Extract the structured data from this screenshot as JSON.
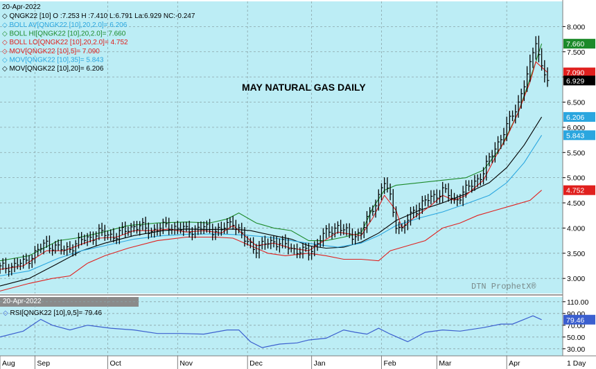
{
  "colors": {
    "plot_bg": "#bcedf5",
    "bar": "#000000",
    "boll": "#1c8a2a",
    "mov5": "#e0201e",
    "mov35": "#2aa6df",
    "mov20": "#000000",
    "rsi": "#3b5fcf",
    "axis_bg": "#ffffff",
    "panel_border": "#7d7d7d"
  },
  "header": {
    "date": "20-Apr-2022",
    "quote": "QNGK22 [10] O :7.253 H :7.410 L:6.791 La:6.929 NC:-0.247"
  },
  "legend": [
    {
      "text": "BOLL AV[QNGK22 [10],20,2.0]= 6.206",
      "color": "#2aa6df"
    },
    {
      "text": "BOLL HI[QNGK22 [10],20,2.0]= 7.660",
      "color": "#1c8a2a"
    },
    {
      "text": "BOLL LO[QNGK22 [10],20,2.0]= 4.752",
      "color": "#e0201e"
    },
    {
      "text": "MOV[QNGK22 [10],5]= 7.090",
      "color": "#e0201e"
    },
    {
      "text": "MOV[QNGK22 [10],35]= 5.843",
      "color": "#2aa6df"
    },
    {
      "text": "MOV[QNGK22 [10],20]= 6.206",
      "color": "#000000"
    }
  ],
  "title": "MAY NATURAL GAS DAILY",
  "watermark": "DTN ProphetX®",
  "rsi_header": {
    "date": "20-Apr-2022",
    "label": "RSI[QNGK22 [10],9,5]= 79.46"
  },
  "period": "1 Day",
  "price_badges": [
    {
      "value": 7.66,
      "text": "7.660",
      "bg": "#1c8a2a",
      "fg": "#ffffff"
    },
    {
      "value": 7.09,
      "text": "7.090",
      "bg": "#e0201e",
      "fg": "#ffffff"
    },
    {
      "value": 6.929,
      "text": "6.929",
      "bg": "#000000",
      "fg": "#ffffff"
    },
    {
      "value": 6.206,
      "text": "6.206",
      "bg": "#2aa6df",
      "fg": "#ffffff"
    },
    {
      "value": 5.843,
      "text": "5.843",
      "bg": "#2aa6df",
      "fg": "#ffffff"
    },
    {
      "value": 4.752,
      "text": "4.752",
      "bg": "#e0201e",
      "fg": "#ffffff"
    }
  ],
  "rsi_badge": {
    "value": 79.46,
    "text": "79.46",
    "bg": "#3b5fcf",
    "fg": "#ffffff"
  },
  "chart_data": {
    "type": "line",
    "title": "MAY NATURAL GAS DAILY",
    "price_axis": {
      "ylim": [
        2.7,
        8.5
      ],
      "ticks": [
        "8.000",
        "7.500",
        "7.000",
        "6.500",
        "6.000",
        "5.500",
        "5.000",
        "4.500",
        "4.000",
        "3.500",
        "3.000"
      ],
      "tick_values": [
        8.0,
        7.5,
        7.0,
        6.5,
        6.0,
        5.5,
        5.0,
        4.5,
        4.0,
        3.5,
        3.0
      ]
    },
    "rsi_axis": {
      "ylim": [
        18,
        118
      ],
      "ticks": [
        "110.00",
        "90.00",
        "70.00",
        "50.00",
        "30.00"
      ],
      "tick_values": [
        110,
        90,
        70,
        50,
        30
      ]
    },
    "months": [
      "Aug",
      "Sep",
      "Oct",
      "Nov",
      "Dec",
      "Jan",
      "Feb",
      "Mar",
      "Apr"
    ],
    "x_range": [
      0,
      188
    ],
    "month_starts": [
      0,
      12,
      37,
      61,
      85,
      107,
      131,
      150,
      174
    ],
    "grid": true,
    "close": [
      [
        0,
        3.2
      ],
      [
        8,
        3.3
      ],
      [
        16,
        3.7
      ],
      [
        22,
        3.55
      ],
      [
        28,
        3.75
      ],
      [
        34,
        3.9
      ],
      [
        40,
        3.85
      ],
      [
        46,
        4.05
      ],
      [
        52,
        3.95
      ],
      [
        58,
        4.05
      ],
      [
        64,
        3.95
      ],
      [
        70,
        4.0
      ],
      [
        76,
        3.95
      ],
      [
        80,
        4.15
      ],
      [
        84,
        3.75
      ],
      [
        88,
        3.6
      ],
      [
        94,
        3.75
      ],
      [
        100,
        3.6
      ],
      [
        106,
        3.5
      ],
      [
        110,
        3.8
      ],
      [
        116,
        4.05
      ],
      [
        120,
        3.85
      ],
      [
        124,
        3.9
      ],
      [
        128,
        4.4
      ],
      [
        132,
        4.9
      ],
      [
        134,
        4.6
      ],
      [
        136,
        4.1
      ],
      [
        138,
        3.95
      ],
      [
        142,
        4.35
      ],
      [
        148,
        4.6
      ],
      [
        152,
        4.75
      ],
      [
        156,
        4.55
      ],
      [
        160,
        4.75
      ],
      [
        166,
        5.1
      ],
      [
        170,
        5.6
      ],
      [
        174,
        6.0
      ],
      [
        178,
        6.5
      ],
      [
        182,
        7.2
      ],
      [
        184,
        7.75
      ],
      [
        186,
        7.2
      ],
      [
        188,
        6.93
      ]
    ],
    "series": [
      {
        "name": "BOLL HI[QNGK22 [10],20,2.0]",
        "color": "#1c8a2a",
        "points": [
          [
            0,
            3.35
          ],
          [
            10,
            3.45
          ],
          [
            20,
            3.75
          ],
          [
            26,
            3.8
          ],
          [
            34,
            3.9
          ],
          [
            44,
            4.05
          ],
          [
            54,
            4.1
          ],
          [
            64,
            4.12
          ],
          [
            72,
            4.1
          ],
          [
            78,
            4.18
          ],
          [
            82,
            4.3
          ],
          [
            88,
            4.1
          ],
          [
            94,
            4.0
          ],
          [
            100,
            3.95
          ],
          [
            106,
            3.75
          ],
          [
            112,
            3.75
          ],
          [
            118,
            3.82
          ],
          [
            124,
            3.9
          ],
          [
            128,
            4.4
          ],
          [
            132,
            4.75
          ],
          [
            136,
            4.85
          ],
          [
            144,
            4.9
          ],
          [
            152,
            4.95
          ],
          [
            160,
            5.0
          ],
          [
            166,
            5.15
          ],
          [
            172,
            5.6
          ],
          [
            178,
            6.3
          ],
          [
            184,
            7.3
          ],
          [
            186,
            7.66
          ]
        ]
      },
      {
        "name": "BOLL AV[QNGK22 [10],20,2.0]",
        "color": "#000000",
        "points": [
          [
            0,
            2.85
          ],
          [
            10,
            3.0
          ],
          [
            20,
            3.3
          ],
          [
            28,
            3.55
          ],
          [
            36,
            3.7
          ],
          [
            46,
            3.85
          ],
          [
            56,
            3.95
          ],
          [
            64,
            3.98
          ],
          [
            72,
            3.97
          ],
          [
            80,
            3.98
          ],
          [
            86,
            3.95
          ],
          [
            94,
            3.85
          ],
          [
            100,
            3.78
          ],
          [
            106,
            3.65
          ],
          [
            112,
            3.6
          ],
          [
            118,
            3.62
          ],
          [
            124,
            3.72
          ],
          [
            130,
            3.9
          ],
          [
            136,
            4.15
          ],
          [
            144,
            4.35
          ],
          [
            152,
            4.5
          ],
          [
            160,
            4.68
          ],
          [
            168,
            4.9
          ],
          [
            174,
            5.2
          ],
          [
            180,
            5.65
          ],
          [
            186,
            6.206
          ]
        ]
      },
      {
        "name": "BOLL LO[QNGK22 [10],20,2.0]",
        "color": "#e0201e",
        "points": [
          [
            0,
            2.75
          ],
          [
            10,
            2.9
          ],
          [
            18,
            3.0
          ],
          [
            24,
            3.05
          ],
          [
            30,
            3.3
          ],
          [
            36,
            3.45
          ],
          [
            44,
            3.6
          ],
          [
            54,
            3.75
          ],
          [
            64,
            3.82
          ],
          [
            74,
            3.82
          ],
          [
            80,
            3.8
          ],
          [
            86,
            3.65
          ],
          [
            92,
            3.5
          ],
          [
            98,
            3.45
          ],
          [
            106,
            3.5
          ],
          [
            112,
            3.45
          ],
          [
            118,
            3.38
          ],
          [
            124,
            3.38
          ],
          [
            130,
            3.35
          ],
          [
            134,
            3.55
          ],
          [
            140,
            3.65
          ],
          [
            146,
            3.75
          ],
          [
            152,
            4.0
          ],
          [
            158,
            4.1
          ],
          [
            164,
            4.25
          ],
          [
            170,
            4.35
          ],
          [
            176,
            4.45
          ],
          [
            182,
            4.55
          ],
          [
            186,
            4.752
          ]
        ]
      },
      {
        "name": "MOV[QNGK22 [10],5]",
        "color": "#e0201e",
        "points": [
          [
            0,
            3.18
          ],
          [
            8,
            3.25
          ],
          [
            16,
            3.55
          ],
          [
            22,
            3.55
          ],
          [
            28,
            3.68
          ],
          [
            34,
            3.8
          ],
          [
            40,
            3.82
          ],
          [
            46,
            3.95
          ],
          [
            52,
            3.95
          ],
          [
            58,
            3.98
          ],
          [
            64,
            3.92
          ],
          [
            70,
            3.95
          ],
          [
            76,
            3.9
          ],
          [
            80,
            4.05
          ],
          [
            84,
            3.85
          ],
          [
            88,
            3.65
          ],
          [
            94,
            3.7
          ],
          [
            100,
            3.6
          ],
          [
            106,
            3.55
          ],
          [
            110,
            3.7
          ],
          [
            116,
            3.92
          ],
          [
            120,
            3.88
          ],
          [
            124,
            3.85
          ],
          [
            128,
            4.2
          ],
          [
            132,
            4.65
          ],
          [
            136,
            4.35
          ],
          [
            138,
            4.0
          ],
          [
            142,
            4.2
          ],
          [
            148,
            4.45
          ],
          [
            152,
            4.65
          ],
          [
            156,
            4.55
          ],
          [
            160,
            4.65
          ],
          [
            166,
            4.95
          ],
          [
            170,
            5.4
          ],
          [
            174,
            5.8
          ],
          [
            178,
            6.3
          ],
          [
            182,
            6.9
          ],
          [
            184,
            7.3
          ],
          [
            188,
            7.09
          ]
        ]
      },
      {
        "name": "MOV[QNGK22 [10],35]",
        "color": "#2aa6df",
        "points": [
          [
            0,
            3.05
          ],
          [
            10,
            3.15
          ],
          [
            20,
            3.4
          ],
          [
            28,
            3.55
          ],
          [
            36,
            3.65
          ],
          [
            46,
            3.78
          ],
          [
            56,
            3.85
          ],
          [
            66,
            3.88
          ],
          [
            76,
            3.88
          ],
          [
            84,
            3.86
          ],
          [
            92,
            3.82
          ],
          [
            100,
            3.75
          ],
          [
            108,
            3.68
          ],
          [
            116,
            3.62
          ],
          [
            124,
            3.7
          ],
          [
            130,
            3.85
          ],
          [
            136,
            4.05
          ],
          [
            144,
            4.2
          ],
          [
            152,
            4.32
          ],
          [
            160,
            4.48
          ],
          [
            168,
            4.65
          ],
          [
            174,
            4.9
          ],
          [
            180,
            5.3
          ],
          [
            186,
            5.843
          ]
        ]
      }
    ],
    "rsi": [
      [
        0,
        50
      ],
      [
        8,
        60
      ],
      [
        14,
        80
      ],
      [
        18,
        70
      ],
      [
        24,
        62
      ],
      [
        30,
        70
      ],
      [
        38,
        65
      ],
      [
        46,
        62
      ],
      [
        54,
        56
      ],
      [
        62,
        56
      ],
      [
        70,
        55
      ],
      [
        78,
        62
      ],
      [
        82,
        62
      ],
      [
        86,
        42
      ],
      [
        90,
        32
      ],
      [
        96,
        38
      ],
      [
        102,
        40
      ],
      [
        106,
        45
      ],
      [
        112,
        48
      ],
      [
        118,
        62
      ],
      [
        122,
        58
      ],
      [
        126,
        55
      ],
      [
        130,
        65
      ],
      [
        134,
        55
      ],
      [
        140,
        42
      ],
      [
        146,
        58
      ],
      [
        152,
        62
      ],
      [
        158,
        60
      ],
      [
        166,
        66
      ],
      [
        172,
        72
      ],
      [
        176,
        72
      ],
      [
        180,
        80
      ],
      [
        183,
        86
      ],
      [
        186,
        79.46
      ]
    ]
  }
}
